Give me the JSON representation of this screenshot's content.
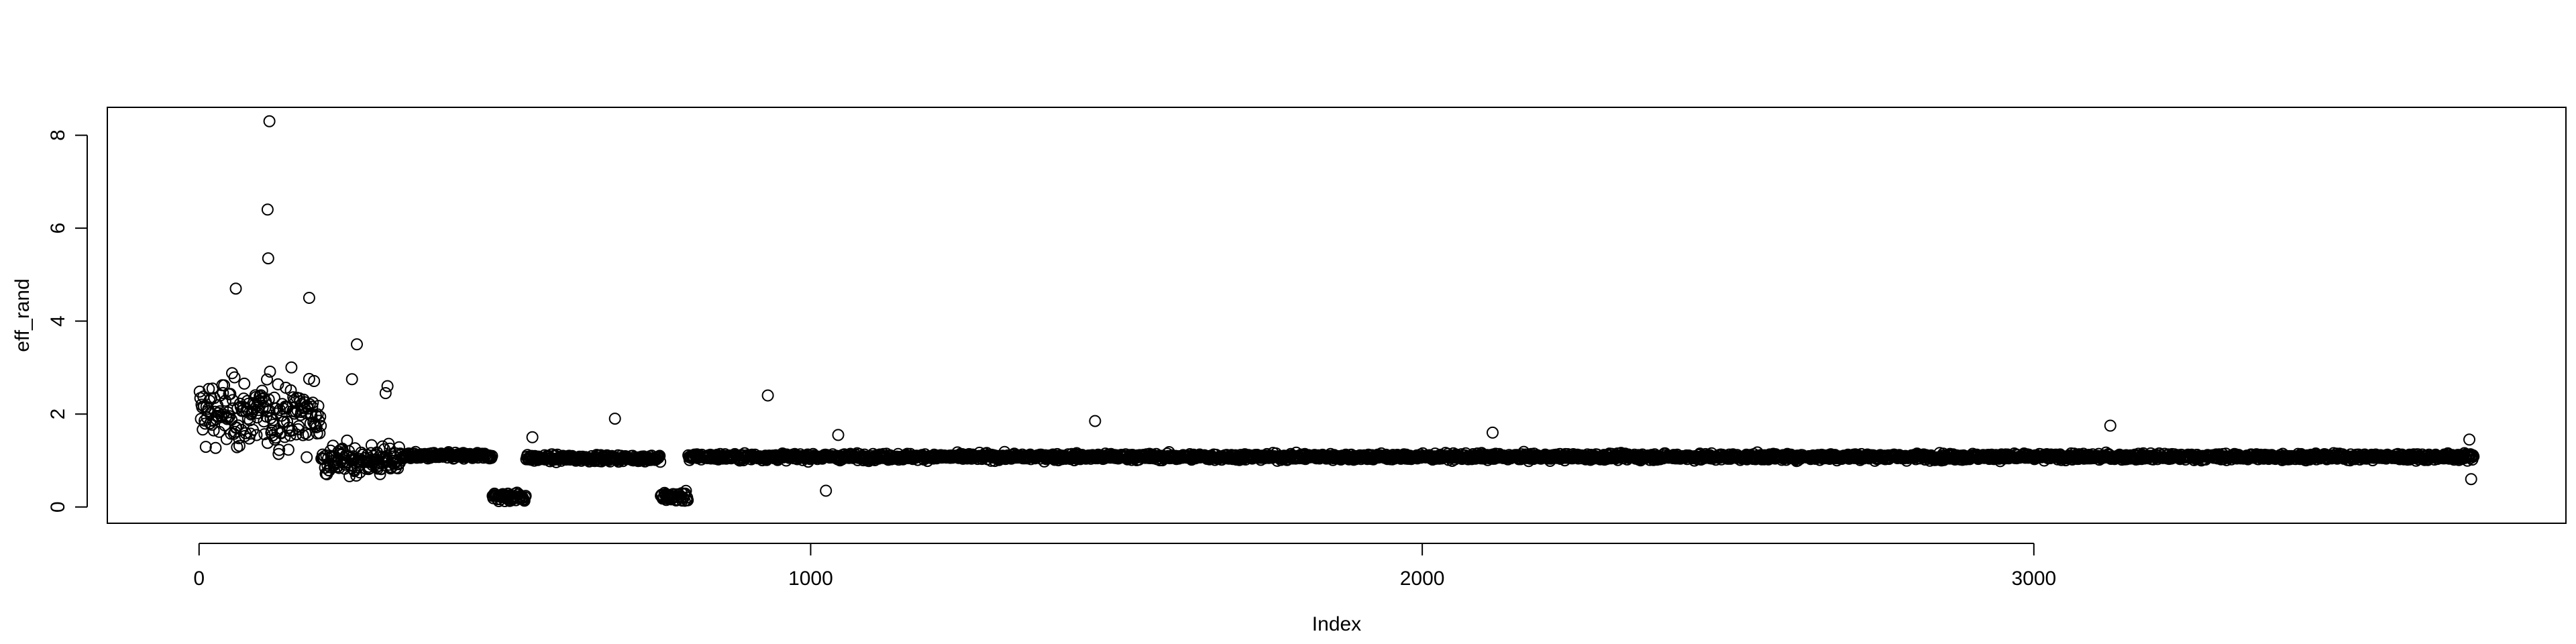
{
  "chart_data": {
    "type": "scatter",
    "title": "",
    "xlabel": "Index",
    "ylabel": "eff_rand",
    "xlim": [
      -150,
      3870
    ],
    "ylim": [
      -0.35,
      8.6
    ],
    "x_ticks": [
      0,
      1000,
      2000,
      3000
    ],
    "x_tick_labels": [
      "0",
      "1000",
      "2000",
      "3000"
    ],
    "y_ticks": [
      0,
      2,
      4,
      6,
      8
    ],
    "y_tick_labels": [
      "0",
      "2",
      "4",
      "6",
      "8"
    ],
    "grid": false,
    "legend": "none",
    "marker": "open-circle",
    "point_color": "#000000",
    "n_points": 3720,
    "segments": [
      {
        "x_range": [
          1,
          200
        ],
        "pattern": "scatter",
        "mean": 2.0,
        "spread": 1.4,
        "max_outliers": [
          [
            115,
            8.3
          ],
          [
            112,
            6.4
          ],
          [
            113,
            5.35
          ],
          [
            60,
            4.7
          ],
          [
            180,
            4.5
          ]
        ]
      },
      {
        "x_range": [
          200,
          330
        ],
        "pattern": "scatter",
        "mean": 1.0,
        "spread": 0.6,
        "max_outliers": [
          [
            258,
            3.5
          ],
          [
            308,
            2.6
          ],
          [
            305,
            2.45
          ],
          [
            250,
            2.75
          ]
        ]
      },
      {
        "x_range": [
          330,
          480
        ],
        "pattern": "band",
        "mean": 1.1,
        "spread": 0.1
      },
      {
        "x_range": [
          480,
          535
        ],
        "pattern": "band",
        "mean": 0.22,
        "spread": 0.15
      },
      {
        "x_range": [
          535,
          755
        ],
        "pattern": "band",
        "mean": 1.05,
        "spread": 0.1,
        "max_outliers": [
          [
            680,
            1.9
          ],
          [
            545,
            1.5
          ]
        ]
      },
      {
        "x_range": [
          755,
          800
        ],
        "pattern": "band",
        "mean": 0.22,
        "spread": 0.15
      },
      {
        "x_range": [
          800,
          3720
        ],
        "pattern": "band",
        "mean": 1.08,
        "spread": 0.1,
        "max_outliers": [
          [
            930,
            2.4
          ],
          [
            1465,
            1.85
          ],
          [
            1045,
            1.55
          ],
          [
            2115,
            1.6
          ],
          [
            3125,
            1.75
          ],
          [
            1025,
            0.35
          ],
          [
            3715,
            0.6
          ],
          [
            3712,
            1.45
          ]
        ]
      }
    ]
  }
}
